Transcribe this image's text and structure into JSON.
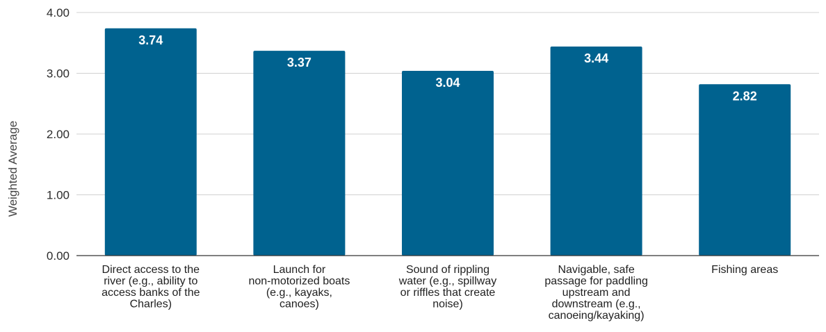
{
  "chart_data": {
    "type": "bar",
    "ylabel": "Weighted Average",
    "ylim": [
      0,
      4
    ],
    "yticks": [
      "0.00",
      "1.00",
      "2.00",
      "3.00",
      "4.00"
    ],
    "grid": true,
    "bar_color": "#00628f",
    "categories": [
      [
        "Direct access to the",
        "river (e.g., ability to",
        "access banks of the",
        "Charles)"
      ],
      [
        "Launch for",
        "non-motorized boats",
        "(e.g., kayaks,",
        "canoes)"
      ],
      [
        "Sound of rippling",
        "water (e.g., spillway",
        "or riffles that create",
        "noise)"
      ],
      [
        "Navigable, safe",
        "passage for paddling",
        "upstream and",
        "downstream (e.g.,",
        "canoeing/kayaking)"
      ],
      [
        "Fishing areas"
      ]
    ],
    "values": [
      3.74,
      3.37,
      3.04,
      3.44,
      2.82
    ],
    "data_labels": [
      "3.74",
      "3.37",
      "3.04",
      "3.44",
      "2.82"
    ]
  }
}
